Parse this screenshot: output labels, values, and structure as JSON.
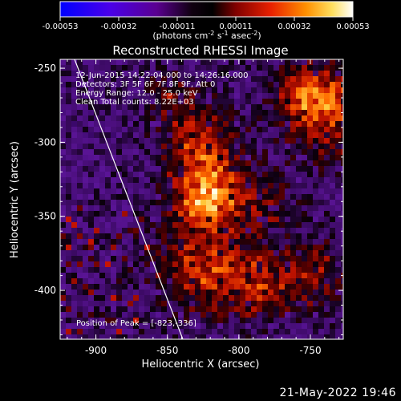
{
  "colorbar": {
    "tick_labels": [
      "-0.00053",
      "-0.00032",
      "-0.00011",
      "0.00011",
      "0.00032",
      "0.00053"
    ],
    "units_prefix": "(photons cm",
    "units_exp1": "-2",
    "units_mid": " s",
    "units_exp2": "-1",
    "units_mid2": " asec",
    "units_exp3": "-2",
    "units_suffix": ")",
    "colors": [
      "#0000ff",
      "#5a00e0",
      "#2a0040",
      "#000000",
      "#700000",
      "#e01000",
      "#ff7a00",
      "#ffd040",
      "#ffffff"
    ]
  },
  "plot": {
    "title": "Reconstructed RHESSI Image",
    "xlabel": "Heliocentric X (arcsec)",
    "ylabel": "Heliocentric Y (arcsec)",
    "xlim": [
      -925,
      -727
    ],
    "ylim": [
      -433,
      -244
    ],
    "xticks": [
      "-900",
      "-850",
      "-800",
      "-750"
    ],
    "yticks": [
      "-250",
      "-300",
      "-350",
      "-400"
    ],
    "info_lines": [
      "12-Jun-2015 14:22:04.000 to 14:26:16.000",
      "Detectors: 3F 5F 6F 7F 8F 9F, Att 0",
      "Energy Range: 12.0 - 25.0 keV",
      "Clean     Total counts: 8.22E+03"
    ],
    "peak_label": "Position of Peak = [-823,-336]",
    "peak_position": [
      -823,
      -336
    ]
  },
  "footer": {
    "date": "21-May-2022 19:46"
  }
}
